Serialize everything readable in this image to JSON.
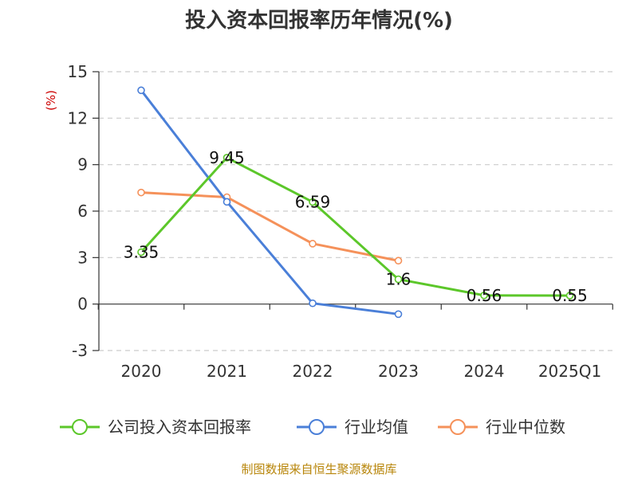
{
  "chart_data": {
    "type": "line",
    "title": "投入资本回报率历年情况(%)",
    "ylabel": "(%)",
    "ylim": [
      -3,
      15
    ],
    "yticks": [
      -3,
      0,
      3,
      6,
      9,
      12,
      15
    ],
    "categories": [
      "2020",
      "2021",
      "2022",
      "2023",
      "2024",
      "2025Q1"
    ],
    "grid": true,
    "legend_position": "bottom",
    "series": [
      {
        "name": "公司投入资本回报率",
        "color": "#5cc72a",
        "values": [
          3.35,
          9.45,
          6.59,
          1.6,
          0.56,
          0.55
        ],
        "labels": [
          "3.35",
          "9.45",
          "6.59",
          "1.6",
          "0.56",
          "0.55"
        ]
      },
      {
        "name": "行业均值",
        "color": "#4a7fd8",
        "values": [
          13.8,
          6.6,
          0.05,
          -0.65,
          null,
          null
        ]
      },
      {
        "name": "行业中位数",
        "color": "#f5915a",
        "values": [
          7.2,
          6.9,
          3.9,
          2.8,
          null,
          null
        ]
      }
    ]
  },
  "source": "制图数据来自恒生聚源数据库"
}
